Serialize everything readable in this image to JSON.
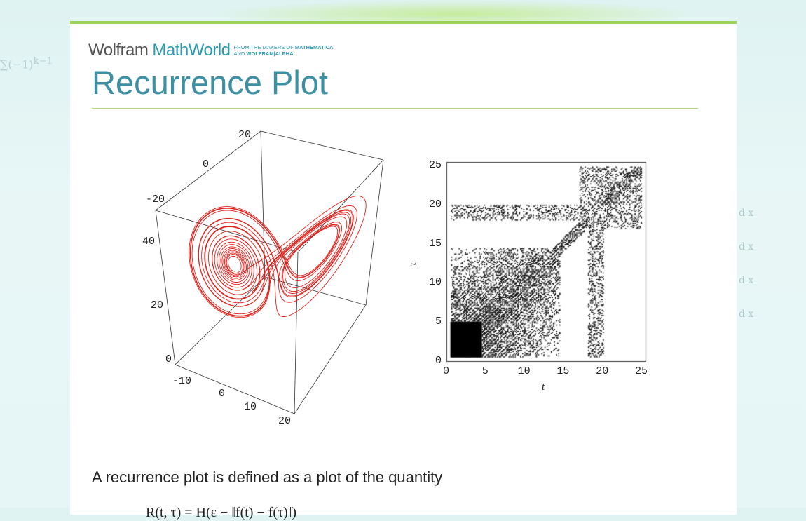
{
  "header": {
    "logo_wolfram": "Wolfram",
    "logo_mathworld": "MathWorld",
    "tagline_line1_prefix": "FROM THE MAKERS OF ",
    "tagline_line1_bold": "MATHEMATICA",
    "tagline_line2_prefix": "AND ",
    "tagline_line2_bold": "WOLFRAM|ALPHA"
  },
  "page": {
    "title": "Recurrence Plot"
  },
  "figure_3d": {
    "curve_color": "#e0201a",
    "y_ticks": [
      "20",
      "0",
      "-20"
    ],
    "z_ticks": [
      "40",
      "20",
      "0"
    ],
    "x_ticks": [
      "-10",
      "0",
      "10",
      "20"
    ]
  },
  "figure_recurrence": {
    "x_ticks": [
      "0",
      "5",
      "10",
      "15",
      "20",
      "25"
    ],
    "y_ticks": [
      "25",
      "20",
      "15",
      "10",
      "5",
      "0"
    ],
    "xlabel": "t",
    "ylabel": "τ"
  },
  "body": {
    "paragraph": "A recurrence plot is defined as a plot of the quantity"
  },
  "colors": {
    "accent": "#3d8fa3",
    "rule": "#a9d67c",
    "topbar": "#9ed25a"
  }
}
